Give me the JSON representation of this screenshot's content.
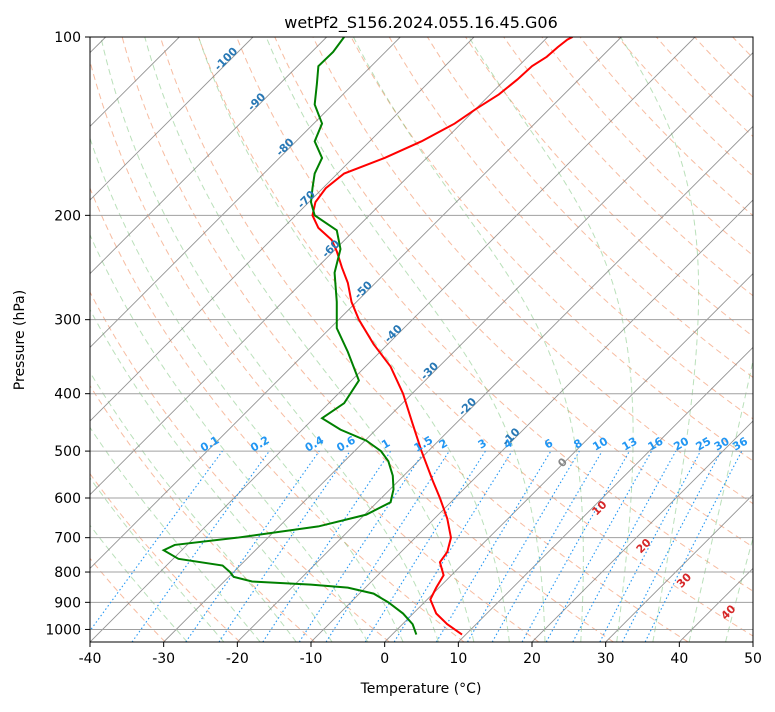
{
  "chart_data": {
    "type": "line",
    "title": "wetPf2_S156.2024.055.16.45.G06",
    "xlabel": "Temperature (°C)",
    "ylabel": "Pressure (hPa)",
    "xlim": [
      -40,
      50
    ],
    "ylim": [
      1050,
      100
    ],
    "yscale": "log",
    "grid": true,
    "x_ticks": [
      -40,
      -30,
      -20,
      -10,
      0,
      10,
      20,
      30,
      40,
      50
    ],
    "y_ticks": [
      100,
      200,
      300,
      400,
      500,
      600,
      700,
      800,
      900,
      1000
    ],
    "isotherm_labels": [
      {
        "value": "-100",
        "T": -100,
        "p": 110
      },
      {
        "value": "-90",
        "T": -90,
        "p": 130
      },
      {
        "value": "-80",
        "T": -80,
        "p": 155
      },
      {
        "value": "-70",
        "T": -70,
        "p": 190
      },
      {
        "value": "-60",
        "T": -60,
        "p": 230
      },
      {
        "value": "-50",
        "T": -50,
        "p": 270
      },
      {
        "value": "-40",
        "T": -40,
        "p": 320
      },
      {
        "value": "-30",
        "T": -30,
        "p": 370
      },
      {
        "value": "-20",
        "T": -20,
        "p": 425
      },
      {
        "value": "-10",
        "T": -10,
        "p": 478
      }
    ],
    "mixing_ratio_labels": [
      "0.1",
      "0.2",
      "0.4",
      "0.6",
      "1",
      "1.5",
      "2",
      "3",
      "4",
      "6",
      "8",
      "10",
      "13",
      "16",
      "20",
      "25",
      "30",
      "36"
    ],
    "mixing_ratio_label_T": [
      -23.5,
      -16.7,
      -9.3,
      -5.0,
      0.4,
      5.5,
      8.2,
      13.5,
      17.0,
      22.5,
      26.5,
      29.5,
      33.5,
      37.0,
      40.5,
      43.5,
      46.0,
      48.5
    ],
    "dry_adiabat_labels": [
      {
        "value": "0",
        "T": 24.5,
        "p": 528
      },
      {
        "value": "10",
        "T": 29.5,
        "p": 630
      },
      {
        "value": "20",
        "T": 35.5,
        "p": 730
      },
      {
        "value": "30",
        "T": 41.0,
        "p": 835
      },
      {
        "value": "40",
        "T": 47.0,
        "p": 945
      }
    ],
    "series": [
      {
        "color": "#ff0000",
        "x": [
          10.5,
          8.5,
          7.0,
          6.2,
          7.0,
          8.0,
          7.5,
          8.5,
          9.0,
          8.5,
          7.5,
          6.5,
          5.0,
          3.8,
          2.5,
          0.8,
          -1.5,
          -3.5,
          -4.5,
          -5.0,
          -5.8,
          -6.5,
          -7.2,
          -9.0,
          -9.8,
          -9.4,
          -8.0,
          -5.5,
          0.0,
          5.0,
          9.5,
          12.5,
          15.5,
          18.0,
          20.0,
          22.0,
          23.5,
          24.8,
          25.5
        ],
        "y": [
          1020,
          980,
          940,
          890,
          850,
          810,
          770,
          740,
          700,
          650,
          600,
          560,
          500,
          450,
          400,
          360,
          330,
          300,
          280,
          260,
          245,
          230,
          220,
          210,
          200,
          190,
          180,
          170,
          160,
          150,
          140,
          132,
          125,
          118,
          112,
          108,
          104,
          101,
          100
        ]
      },
      {
        "color": "#008000",
        "x": [
          4.3,
          3.8,
          2.5,
          0.5,
          -1.5,
          -5.0,
          -10.0,
          -18.0,
          -20.5,
          -21.0,
          -22.0,
          -28.0,
          -30.0,
          -28.5,
          -20.0,
          -9.0,
          -2.5,
          0.8,
          1.2,
          1.1,
          0.5,
          -0.5,
          -2.5,
          -6.0,
          -8.5,
          -5.5,
          -3.5,
          -5.0,
          -6.5,
          -6.5,
          -6.8,
          -6.0,
          -6.5,
          -9.5,
          -10.0,
          -9.8,
          -9.5,
          -8.5,
          -9.5,
          -8.5,
          -9.5,
          -9.2,
          -9.0,
          -7.0,
          -5.5
        ],
        "y": [
          1020,
          980,
          940,
          900,
          870,
          850,
          840,
          830,
          815,
          800,
          780,
          760,
          735,
          720,
          700,
          670,
          640,
          610,
          580,
          550,
          520,
          500,
          480,
          460,
          440,
          415,
          380,
          340,
          310,
          280,
          250,
          228,
          212,
          200,
          190,
          180,
          170,
          160,
          150,
          140,
          130,
          120,
          112,
          106,
          100
        ]
      }
    ]
  }
}
